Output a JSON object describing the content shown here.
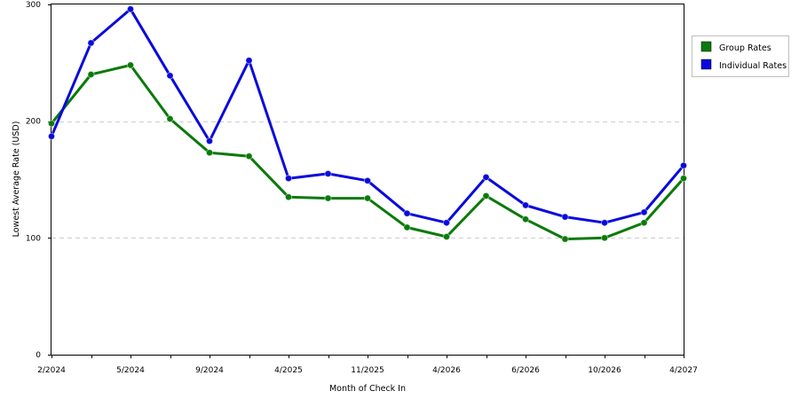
{
  "chart_data": {
    "type": "line",
    "title": "",
    "xlabel": "Month of Check In",
    "ylabel": "Lowest Average Rate (USD)",
    "ylim": [
      0,
      300
    ],
    "yticks": [
      0,
      100,
      200,
      300
    ],
    "x_tick_labels": [
      "2/2024",
      "5/2024",
      "9/2024",
      "4/2025",
      "11/2025",
      "4/2026",
      "6/2026",
      "10/2026",
      "4/2027"
    ],
    "x_tick_every": 2,
    "point_count": 17,
    "grid": {
      "horizontal": true,
      "style": "dashed"
    },
    "legend": {
      "position": "top-right"
    },
    "series": [
      {
        "name": "Group Rates",
        "color": "#0a7a0a",
        "values": [
          198,
          240,
          248,
          202,
          173,
          170,
          135,
          134,
          134,
          109,
          101,
          136,
          116,
          99,
          100,
          113,
          151
        ]
      },
      {
        "name": "Individual Rates",
        "color": "#0a0adc",
        "values": [
          187,
          267,
          296,
          239,
          183,
          252,
          151,
          155,
          149,
          121,
          113,
          152,
          128,
          118,
          113,
          122,
          162
        ]
      }
    ]
  }
}
